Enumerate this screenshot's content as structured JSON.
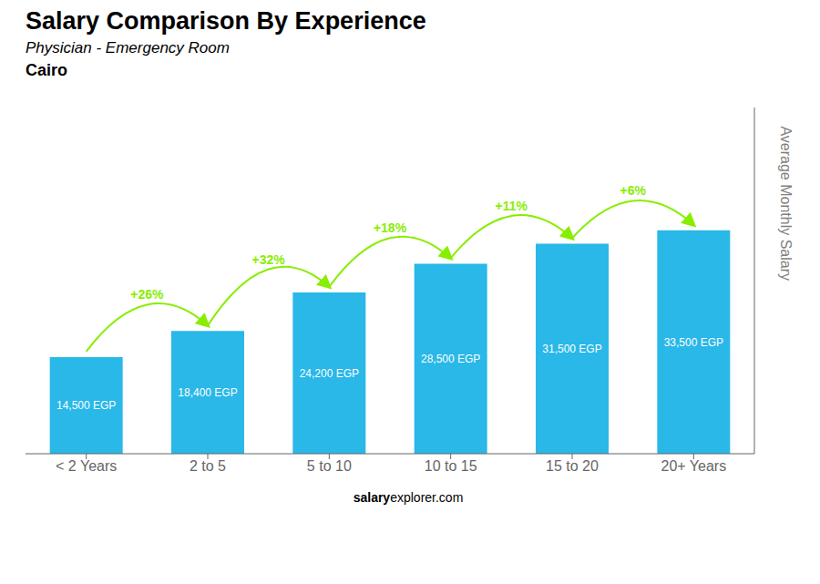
{
  "chart_data": {
    "type": "bar",
    "title": "Salary Comparison By Experience",
    "subtitle": [
      "Physician - Emergency Room",
      "Cairo"
    ],
    "ylabel": "Average Monthly Salary",
    "categories": [
      "< 2 Years",
      "2 to 5",
      "5 to 10",
      "10 to 15",
      "15 to 20",
      "20+ Years"
    ],
    "values": [
      14500,
      18400,
      24200,
      28500,
      31500,
      33500
    ],
    "value_labels": [
      "14,500 EGP",
      "18,400 EGP",
      "24,200 EGP",
      "28,500 EGP",
      "31,500 EGP",
      "33,500 EGP"
    ],
    "data_labels": true,
    "color": "#29b8e8",
    "ylim": [
      0,
      51925
    ],
    "tick_labels": "x",
    "grid": false,
    "annotations": [
      {
        "text": "+26%",
        "from": "< 2 Years",
        "to": "2 to 5",
        "color": "#88ee00"
      },
      {
        "text": "+32%",
        "from": "2 to 5",
        "to": "5 to 10",
        "color": "#88ee00"
      },
      {
        "text": "+18%",
        "from": "5 to 10",
        "to": "10 to 15",
        "color": "#88ee00"
      },
      {
        "text": "+11%",
        "from": "10 to 15",
        "to": "15 to 20",
        "color": "#88ee00"
      },
      {
        "text": "+6%",
        "from": "15 to 20",
        "to": "20+ Years",
        "color": "#88ee00"
      },
      {
        "text": "salary"
      },
      {
        "text": "explorer.com"
      }
    ]
  }
}
